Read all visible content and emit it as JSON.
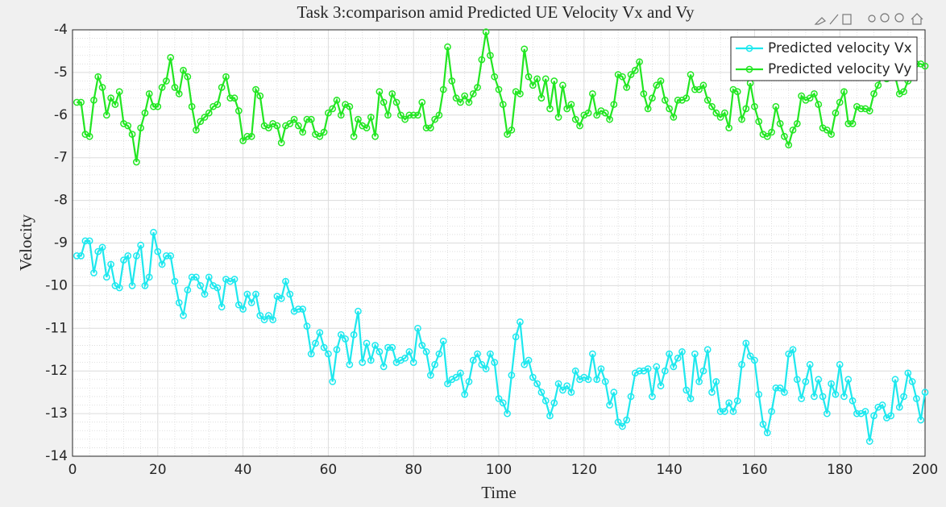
{
  "chart_data": {
    "type": "line",
    "title": "Task 3:comparison amid Predicted UE Velocity Vx and Vy",
    "x_label": "Time",
    "y_label": "Velocity",
    "x": [
      1,
      2,
      3,
      4,
      5,
      6,
      7,
      8,
      9,
      10,
      11,
      12,
      13,
      14,
      15,
      16,
      17,
      18,
      19,
      20,
      21,
      22,
      23,
      24,
      25,
      26,
      27,
      28,
      29,
      30,
      31,
      32,
      33,
      34,
      35,
      36,
      37,
      38,
      39,
      40,
      41,
      42,
      43,
      44,
      45,
      46,
      47,
      48,
      49,
      50,
      51,
      52,
      53,
      54,
      55,
      56,
      57,
      58,
      59,
      60,
      61,
      62,
      63,
      64,
      65,
      66,
      67,
      68,
      69,
      70,
      71,
      72,
      73,
      74,
      75,
      76,
      77,
      78,
      79,
      80,
      81,
      82,
      83,
      84,
      85,
      86,
      87,
      88,
      89,
      90,
      91,
      92,
      93,
      94,
      95,
      96,
      97,
      98,
      99,
      100,
      101,
      102,
      103,
      104,
      105,
      106,
      107,
      108,
      109,
      110,
      111,
      112,
      113,
      114,
      115,
      116,
      117,
      118,
      119,
      120,
      121,
      122,
      123,
      124,
      125,
      126,
      127,
      128,
      129,
      130,
      131,
      132,
      133,
      134,
      135,
      136,
      137,
      138,
      139,
      140,
      141,
      142,
      143,
      144,
      145,
      146,
      147,
      148,
      149,
      150,
      151,
      152,
      153,
      154,
      155,
      156,
      157,
      158,
      159,
      160,
      161,
      162,
      163,
      164,
      165,
      166,
      167,
      168,
      169,
      170,
      171,
      172,
      173,
      174,
      175,
      176,
      177,
      178,
      179,
      180,
      181,
      182,
      183,
      184,
      185,
      186,
      187,
      188,
      189,
      190,
      191,
      192,
      193,
      194,
      195,
      196,
      197,
      198,
      199,
      200
    ],
    "series": [
      {
        "name": "Predicted velocity Vx",
        "color": "#1ee8ee",
        "values": [
          -9.3,
          -9.3,
          -8.95,
          -8.95,
          -9.7,
          -9.2,
          -9.1,
          -9.8,
          -9.5,
          -10,
          -10.05,
          -9.4,
          -9.3,
          -10,
          -9.3,
          -9.05,
          -10,
          -9.8,
          -8.75,
          -9.2,
          -9.5,
          -9.3,
          -9.3,
          -9.9,
          -10.4,
          -10.7,
          -10.1,
          -9.8,
          -9.8,
          -10,
          -10.2,
          -9.8,
          -10,
          -10.05,
          -10.5,
          -9.85,
          -9.9,
          -9.85,
          -10.45,
          -10.55,
          -10.2,
          -10.4,
          -10.2,
          -10.7,
          -10.8,
          -10.7,
          -10.8,
          -10.25,
          -10.3,
          -9.9,
          -10.2,
          -10.6,
          -10.55,
          -10.55,
          -10.95,
          -11.6,
          -11.35,
          -11.1,
          -11.45,
          -11.6,
          -12.25,
          -11.5,
          -11.15,
          -11.25,
          -11.85,
          -11.15,
          -10.6,
          -11.8,
          -11.35,
          -11.75,
          -11.4,
          -11.55,
          -11.9,
          -11.45,
          -11.45,
          -11.8,
          -11.75,
          -11.7,
          -11.55,
          -11.8,
          -11,
          -11.4,
          -11.55,
          -12.1,
          -11.85,
          -11.6,
          -11.3,
          -12.3,
          -12.2,
          -12.15,
          -12.05,
          -12.55,
          -12.25,
          -11.75,
          -11.6,
          -11.85,
          -11.95,
          -11.6,
          -11.8,
          -12.65,
          -12.75,
          -13,
          -12.1,
          -11.2,
          -10.85,
          -11.85,
          -11.75,
          -12.15,
          -12.3,
          -12.5,
          -12.7,
          -13.05,
          -12.75,
          -12.3,
          -12.45,
          -12.35,
          -12.5,
          -12,
          -12.2,
          -12.15,
          -12.2,
          -11.6,
          -12.2,
          -11.95,
          -12.25,
          -12.8,
          -12.5,
          -13.2,
          -13.3,
          -13.15,
          -12.6,
          -12.05,
          -12,
          -12,
          -11.95,
          -12.6,
          -11.9,
          -12.35,
          -12,
          -11.6,
          -11.9,
          -11.7,
          -11.55,
          -12.45,
          -12.65,
          -11.6,
          -12.25,
          -12,
          -11.5,
          -12.5,
          -12.25,
          -12.95,
          -12.95,
          -12.75,
          -12.95,
          -12.7,
          -11.85,
          -11.35,
          -11.65,
          -11.75,
          -12.55,
          -13.25,
          -13.45,
          -12.95,
          -12.4,
          -12.4,
          -12.5,
          -11.6,
          -11.5,
          -12.2,
          -12.65,
          -12.25,
          -11.85,
          -12.6,
          -12.2,
          -12.6,
          -13,
          -12.3,
          -12.55,
          -11.85,
          -12.6,
          -12.2,
          -12.7,
          -13,
          -13,
          -12.95,
          -13.65,
          -13.05,
          -12.85,
          -12.8,
          -13.1,
          -13.05,
          -12.2,
          -12.85,
          -12.6,
          -12.05,
          -12.25,
          -12.65,
          -13.15,
          -12.5
        ]
      },
      {
        "name": "Predicted velocity Vy",
        "color": "#22e622",
        "values": [
          -5.7,
          -5.7,
          -6.45,
          -6.5,
          -5.65,
          -5.1,
          -5.35,
          -6,
          -5.6,
          -5.75,
          -5.45,
          -6.2,
          -6.25,
          -6.45,
          -7.1,
          -6.3,
          -5.95,
          -5.5,
          -5.8,
          -5.8,
          -5.35,
          -5.2,
          -4.65,
          -5.35,
          -5.5,
          -4.95,
          -5.1,
          -5.8,
          -6.35,
          -6.15,
          -6.05,
          -5.95,
          -5.8,
          -5.75,
          -5.35,
          -5.1,
          -5.6,
          -5.6,
          -5.9,
          -6.6,
          -6.5,
          -6.5,
          -5.4,
          -5.55,
          -6.25,
          -6.3,
          -6.2,
          -6.25,
          -6.65,
          -6.25,
          -6.2,
          -6.1,
          -6.25,
          -6.4,
          -6.1,
          -6.1,
          -6.45,
          -6.5,
          -6.4,
          -5.95,
          -5.85,
          -5.65,
          -6,
          -5.75,
          -5.8,
          -6.5,
          -6.1,
          -6.25,
          -6.3,
          -6.05,
          -6.5,
          -5.45,
          -5.7,
          -6,
          -5.5,
          -5.7,
          -6,
          -6.1,
          -6,
          -6,
          -6,
          -5.7,
          -6.3,
          -6.3,
          -6.1,
          -6,
          -5.4,
          -4.4,
          -5.2,
          -5.6,
          -5.7,
          -5.55,
          -5.7,
          -5.5,
          -5.35,
          -4.7,
          -4.05,
          -4.6,
          -5.1,
          -5.4,
          -5.75,
          -6.45,
          -6.35,
          -5.45,
          -5.5,
          -4.45,
          -5.1,
          -5.3,
          -5.15,
          -5.6,
          -5.15,
          -5.85,
          -5.2,
          -6.05,
          -5.3,
          -5.85,
          -5.75,
          -6.1,
          -6.25,
          -6,
          -5.95,
          -5.5,
          -6,
          -5.9,
          -5.95,
          -6.1,
          -5.75,
          -5.05,
          -5.1,
          -5.35,
          -5.05,
          -4.95,
          -4.75,
          -5.5,
          -5.85,
          -5.6,
          -5.3,
          -5.2,
          -5.65,
          -5.85,
          -6.05,
          -5.65,
          -5.65,
          -5.6,
          -5.05,
          -5.4,
          -5.4,
          -5.3,
          -5.65,
          -5.8,
          -5.95,
          -6.05,
          -5.95,
          -6.3,
          -5.4,
          -5.45,
          -6.1,
          -5.85,
          -5.25,
          -5.8,
          -6.15,
          -6.45,
          -6.5,
          -6.4,
          -5.8,
          -6.2,
          -6.5,
          -6.7,
          -6.35,
          -6.2,
          -5.55,
          -5.65,
          -5.6,
          -5.5,
          -5.75,
          -6.3,
          -6.35,
          -6.45,
          -5.95,
          -5.7,
          -5.45,
          -6.2,
          -6.2,
          -5.8,
          -5.85,
          -5.85,
          -5.9,
          -5.5,
          -5.3,
          -5.05,
          -5.15,
          -5.1,
          -5.1,
          -5.5,
          -5.45,
          -5.2,
          -5.05,
          -4.8,
          -4.8,
          -4.85
        ]
      }
    ],
    "xlim": [
      0,
      200
    ],
    "xticks": [
      0,
      20,
      40,
      60,
      80,
      100,
      120,
      140,
      160,
      180,
      200
    ],
    "ylim": [
      -14,
      -4
    ],
    "yticks": [
      -14,
      -13,
      -12,
      -11,
      -10,
      -9,
      -8,
      -7,
      -6,
      -5,
      -4
    ],
    "grid": true,
    "minor_grid": true,
    "legend": "top-right"
  }
}
